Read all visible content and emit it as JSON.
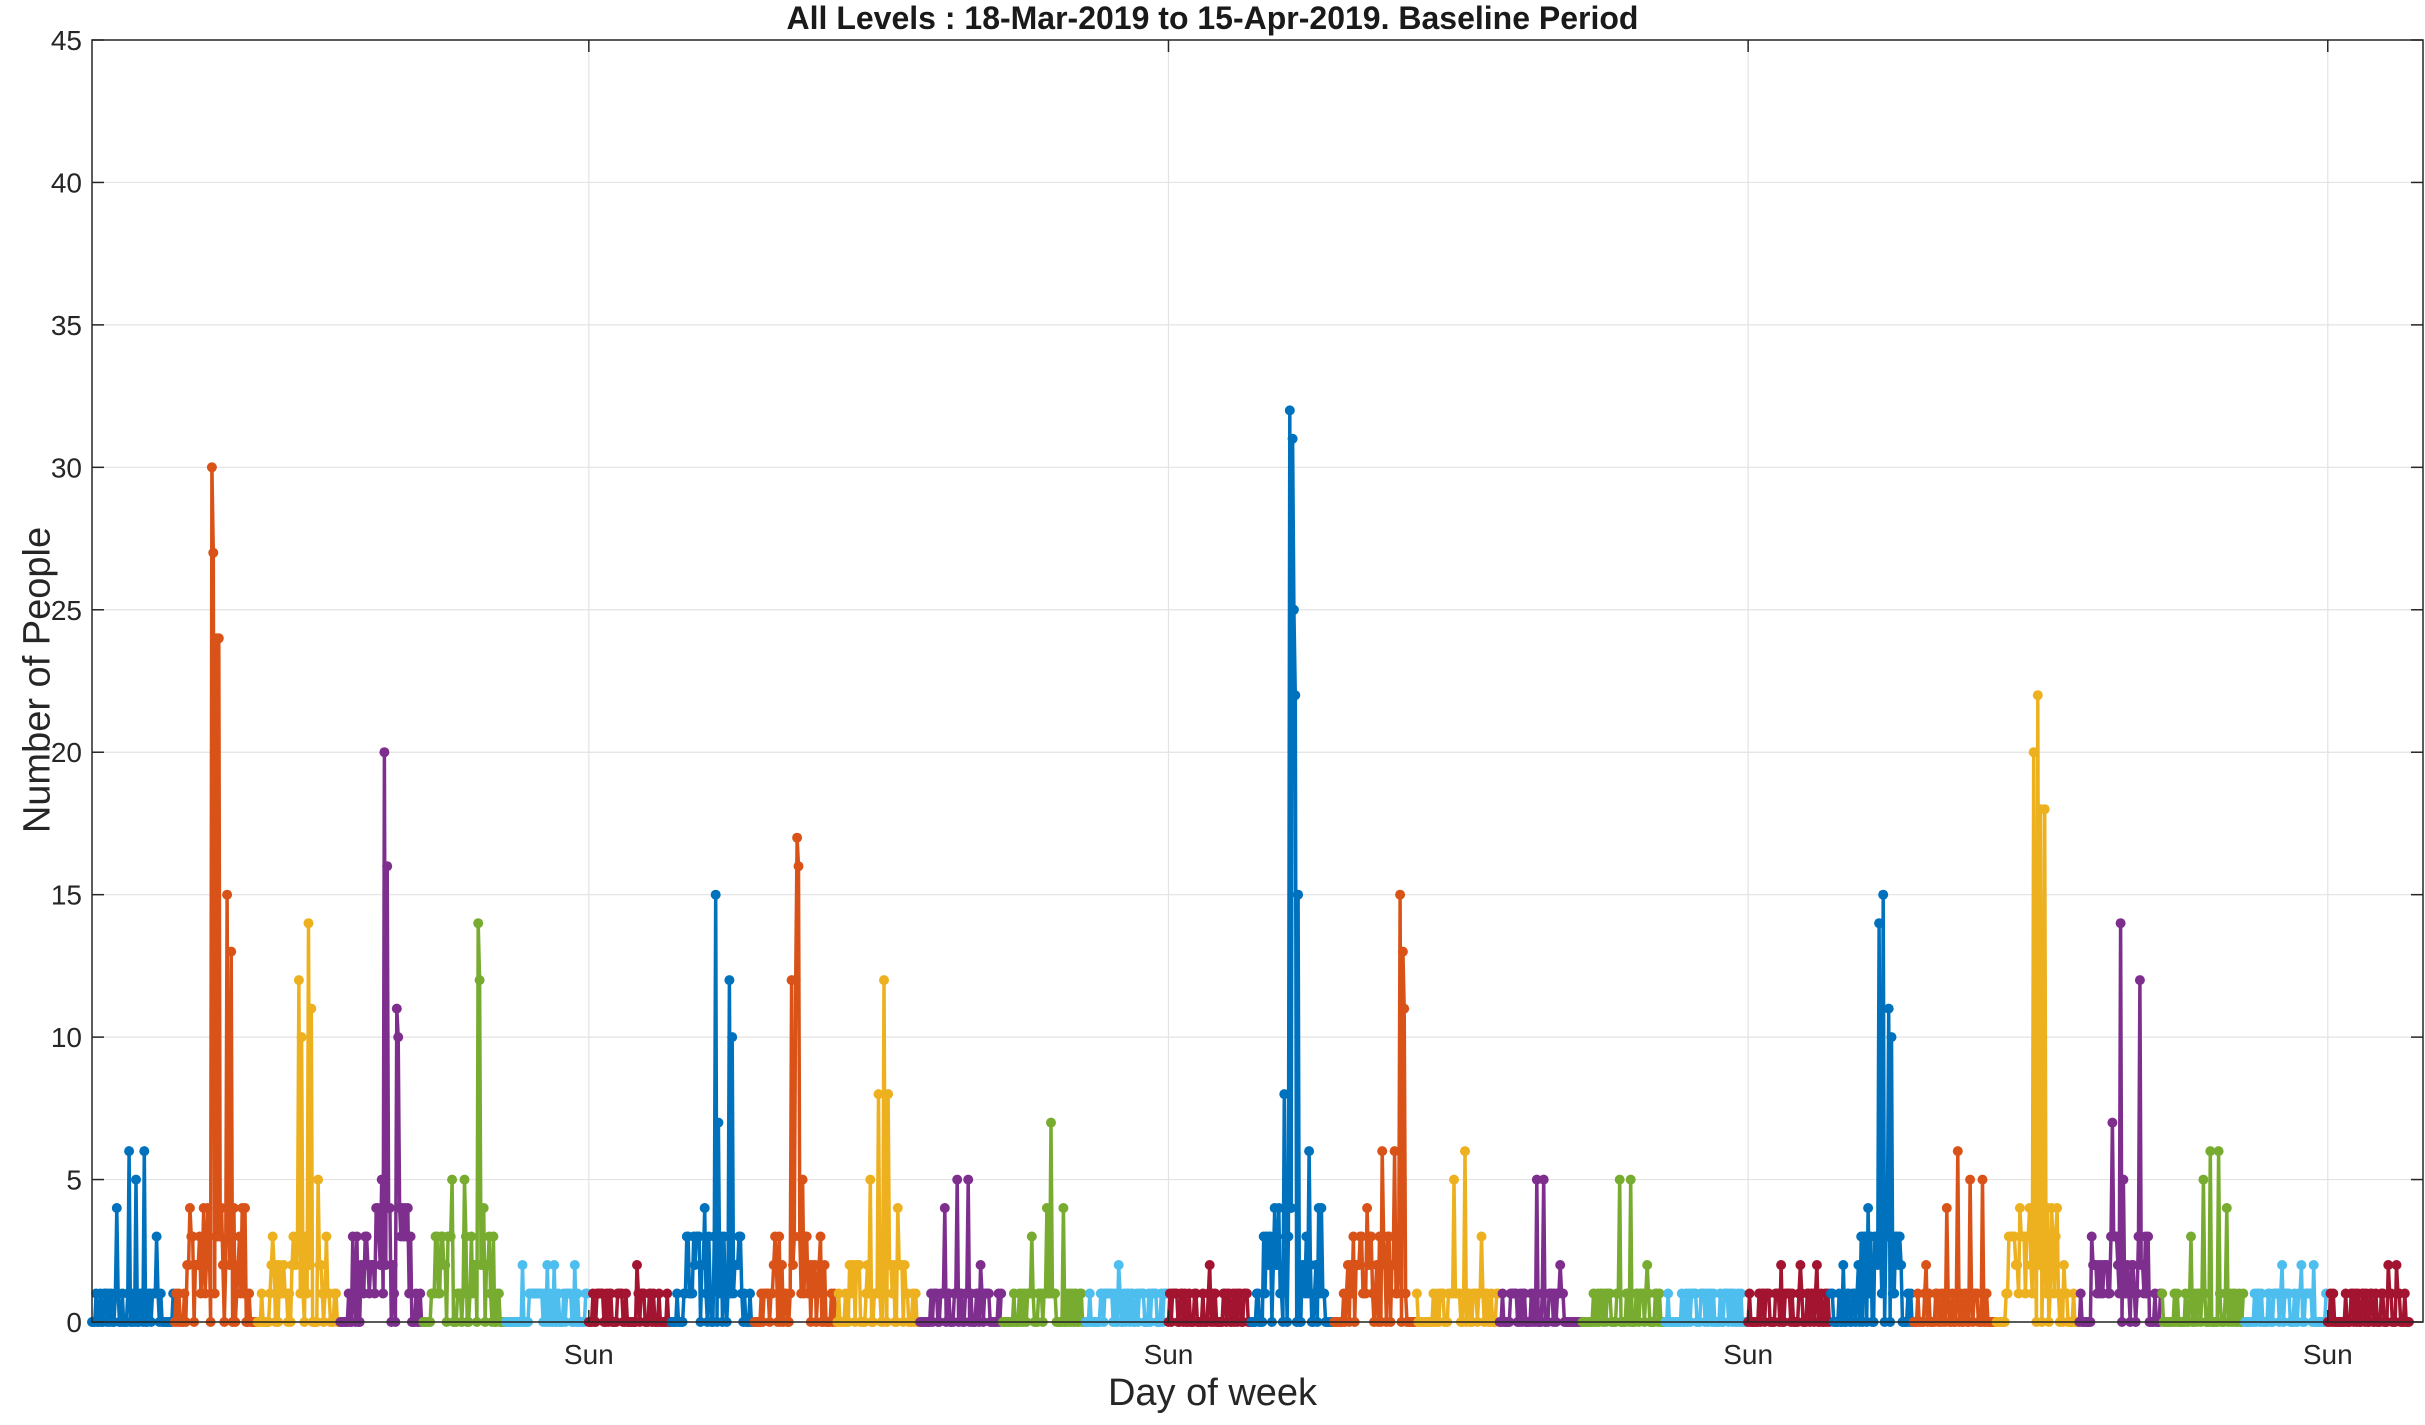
{
  "chart_data": {
    "type": "line",
    "title": "All Levels : 18-Mar-2019 to 15-Apr-2019. Baseline Period",
    "xlabel": "Day of week",
    "ylabel": "Number of People",
    "ylim": [
      0,
      45
    ],
    "yticks": [
      0,
      5,
      10,
      15,
      20,
      25,
      30,
      35,
      40,
      45
    ],
    "xlim": [
      "2019-03-18",
      "2019-04-15"
    ],
    "xticks": [
      {
        "date": "2019-03-24",
        "label": "Sun"
      },
      {
        "date": "2019-03-31",
        "label": "Sun"
      },
      {
        "date": "2019-04-07",
        "label": "Sun"
      },
      {
        "date": "2019-04-14",
        "label": "Sun"
      }
    ],
    "grid": true,
    "legend": "none",
    "colors": [
      "#0072BD",
      "#D95319",
      "#EDB120",
      "#7E2F8E",
      "#77AC30",
      "#4DBEEE",
      "#A2142F"
    ],
    "series": [
      {
        "date": "2019-03-18",
        "color_index": 0,
        "peaks": [
          [
            0.05,
            1
          ],
          [
            0.3,
            4
          ],
          [
            0.45,
            6
          ],
          [
            0.55,
            5
          ],
          [
            0.65,
            6
          ],
          [
            0.8,
            3
          ]
        ]
      },
      {
        "date": "2019-03-19",
        "color_index": 1,
        "peaks": [
          [
            0.45,
            30
          ],
          [
            0.48,
            27
          ],
          [
            0.5,
            24
          ],
          [
            0.55,
            24
          ],
          [
            0.65,
            15
          ],
          [
            0.7,
            13
          ],
          [
            0.8,
            3
          ]
        ]
      },
      {
        "date": "2019-03-20",
        "color_index": 2,
        "peaks": [
          [
            0.5,
            12
          ],
          [
            0.55,
            10
          ],
          [
            0.62,
            14
          ],
          [
            0.66,
            11
          ],
          [
            0.75,
            5
          ]
        ]
      },
      {
        "date": "2019-03-21",
        "color_index": 3,
        "peaks": [
          [
            0.1,
            1
          ],
          [
            0.5,
            5
          ],
          [
            0.55,
            20
          ],
          [
            0.58,
            16
          ],
          [
            0.7,
            11
          ],
          [
            0.72,
            10
          ],
          [
            0.8,
            4
          ]
        ]
      },
      {
        "date": "2019-03-22",
        "color_index": 4,
        "peaks": [
          [
            0.35,
            5
          ],
          [
            0.5,
            5
          ],
          [
            0.68,
            14
          ],
          [
            0.7,
            12
          ],
          [
            0.75,
            4
          ]
        ]
      },
      {
        "date": "2019-03-23",
        "color_index": 5,
        "peaks": [
          [
            0.2,
            2
          ],
          [
            0.5,
            2
          ],
          [
            0.6,
            2
          ],
          [
            0.85,
            2
          ]
        ]
      },
      {
        "date": "2019-03-24",
        "color_index": 6,
        "peaks": [
          [
            0.15,
            1
          ],
          [
            0.4,
            1
          ],
          [
            0.6,
            2
          ],
          [
            0.75,
            1
          ]
        ]
      },
      {
        "date": "2019-03-25",
        "color_index": 0,
        "peaks": [
          [
            0.4,
            4
          ],
          [
            0.55,
            15
          ],
          [
            0.58,
            7
          ],
          [
            0.72,
            12
          ],
          [
            0.74,
            10
          ],
          [
            0.85,
            3
          ]
        ]
      },
      {
        "date": "2019-03-26",
        "color_index": 1,
        "peaks": [
          [
            0.45,
            12
          ],
          [
            0.5,
            12
          ],
          [
            0.52,
            17
          ],
          [
            0.54,
            16
          ],
          [
            0.6,
            5
          ],
          [
            0.8,
            2
          ]
        ]
      },
      {
        "date": "2019-03-27",
        "color_index": 2,
        "peaks": [
          [
            0.4,
            5
          ],
          [
            0.5,
            8
          ],
          [
            0.58,
            12
          ],
          [
            0.62,
            8
          ],
          [
            0.75,
            4
          ]
        ]
      },
      {
        "date": "2019-03-28",
        "color_index": 3,
        "peaks": [
          [
            0.3,
            4
          ],
          [
            0.45,
            5
          ],
          [
            0.6,
            5
          ],
          [
            0.75,
            2
          ]
        ]
      },
      {
        "date": "2019-03-29",
        "color_index": 4,
        "peaks": [
          [
            0.35,
            3
          ],
          [
            0.55,
            4
          ],
          [
            0.6,
            7
          ],
          [
            0.75,
            4
          ]
        ]
      },
      {
        "date": "2019-03-30",
        "color_index": 5,
        "peaks": [
          [
            0.3,
            1
          ],
          [
            0.4,
            2
          ],
          [
            0.7,
            1
          ]
        ]
      },
      {
        "date": "2019-03-31",
        "color_index": 6,
        "peaks": [
          [
            0.2,
            1
          ],
          [
            0.5,
            2
          ],
          [
            0.7,
            1
          ]
        ]
      },
      {
        "date": "2019-04-01",
        "color_index": 0,
        "peaks": [
          [
            0.4,
            8
          ],
          [
            0.48,
            32
          ],
          [
            0.5,
            31
          ],
          [
            0.53,
            25
          ],
          [
            0.55,
            22
          ],
          [
            0.58,
            15
          ],
          [
            0.72,
            6
          ]
        ]
      },
      {
        "date": "2019-04-02",
        "color_index": 1,
        "peaks": [
          [
            0.4,
            4
          ],
          [
            0.6,
            6
          ],
          [
            0.75,
            6
          ],
          [
            0.82,
            15
          ],
          [
            0.84,
            13
          ],
          [
            0.86,
            11
          ]
        ]
      },
      {
        "date": "2019-04-03",
        "color_index": 2,
        "peaks": [
          [
            0.45,
            5
          ],
          [
            0.6,
            6
          ],
          [
            0.8,
            3
          ]
        ]
      },
      {
        "date": "2019-04-04",
        "color_index": 3,
        "peaks": [
          [
            0.45,
            5
          ],
          [
            0.55,
            5
          ],
          [
            0.75,
            2
          ]
        ]
      },
      {
        "date": "2019-04-05",
        "color_index": 4,
        "peaks": [
          [
            0.45,
            5
          ],
          [
            0.6,
            5
          ],
          [
            0.8,
            2
          ]
        ]
      },
      {
        "date": "2019-04-06",
        "color_index": 5,
        "peaks": [
          [
            0.2,
            1
          ],
          [
            0.5,
            1
          ],
          [
            0.8,
            1
          ]
        ]
      },
      {
        "date": "2019-04-07",
        "color_index": 6,
        "peaks": [
          [
            0.4,
            2
          ],
          [
            0.65,
            2
          ],
          [
            0.85,
            2
          ]
        ]
      },
      {
        "date": "2019-04-08",
        "color_index": 0,
        "peaks": [
          [
            0.1,
            1
          ],
          [
            0.45,
            4
          ],
          [
            0.6,
            14
          ],
          [
            0.65,
            15
          ],
          [
            0.72,
            11
          ],
          [
            0.75,
            10
          ]
        ]
      },
      {
        "date": "2019-04-09",
        "color_index": 1,
        "peaks": [
          [
            0.15,
            2
          ],
          [
            0.4,
            4
          ],
          [
            0.55,
            6
          ],
          [
            0.7,
            5
          ],
          [
            0.85,
            5
          ]
        ]
      },
      {
        "date": "2019-04-10",
        "color_index": 2,
        "peaks": [
          [
            0.45,
            20
          ],
          [
            0.5,
            22
          ],
          [
            0.55,
            18
          ],
          [
            0.6,
            18
          ],
          [
            0.75,
            4
          ]
        ]
      },
      {
        "date": "2019-04-11",
        "color_index": 3,
        "peaks": [
          [
            0.4,
            7
          ],
          [
            0.5,
            14
          ],
          [
            0.55,
            5
          ],
          [
            0.75,
            12
          ]
        ]
      },
      {
        "date": "2019-04-12",
        "color_index": 4,
        "peaks": [
          [
            0.35,
            3
          ],
          [
            0.5,
            5
          ],
          [
            0.6,
            6
          ],
          [
            0.7,
            6
          ],
          [
            0.8,
            4
          ]
        ]
      },
      {
        "date": "2019-04-13",
        "color_index": 5,
        "peaks": [
          [
            0.2,
            1
          ],
          [
            0.45,
            2
          ],
          [
            0.7,
            2
          ],
          [
            0.85,
            2
          ]
        ]
      },
      {
        "date": "2019-04-14",
        "color_index": 6,
        "peaks": [
          [
            0.3,
            1
          ],
          [
            0.55,
            1
          ],
          [
            0.75,
            2
          ],
          [
            0.85,
            2
          ]
        ]
      }
    ]
  }
}
